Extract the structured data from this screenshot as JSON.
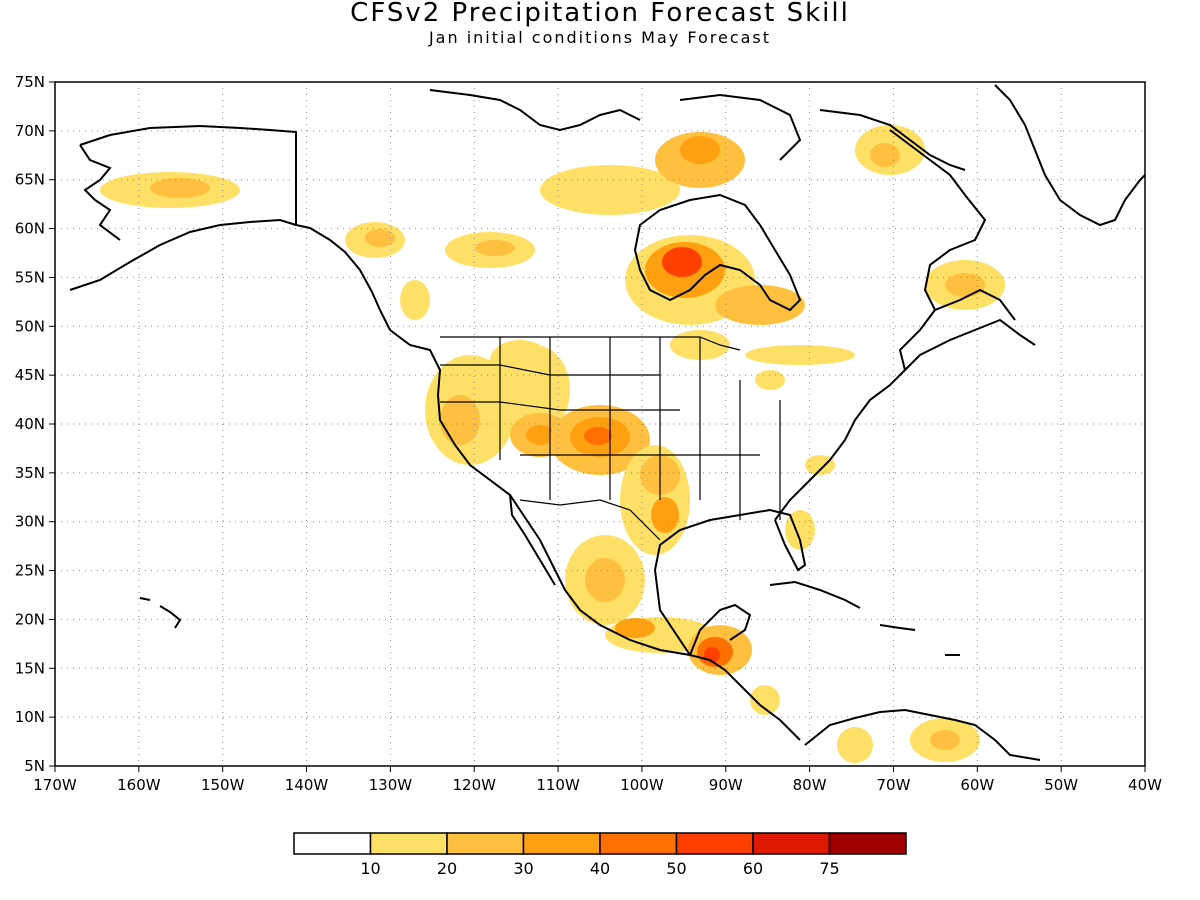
{
  "header": {
    "title": "CFSv2 Precipitation Forecast Skill",
    "subtitle": "Jan initial conditions   May Forecast"
  },
  "map": {
    "lon_range": [
      -170,
      -40
    ],
    "lat_range": [
      5,
      75
    ],
    "lon_ticks": [
      "170W",
      "160W",
      "150W",
      "140W",
      "130W",
      "120W",
      "110W",
      "100W",
      "90W",
      "80W",
      "70W",
      "60W",
      "50W",
      "40W"
    ],
    "lat_ticks": [
      "5N",
      "10N",
      "15N",
      "20N",
      "25N",
      "30N",
      "35N",
      "40N",
      "45N",
      "50N",
      "55N",
      "60N",
      "65N",
      "70N",
      "75N"
    ],
    "grid": "dotted",
    "coastline_color": "#000000"
  },
  "legend": {
    "bins": [
      {
        "color": "#ffffff"
      },
      {
        "color": "#ffe066"
      },
      {
        "color": "#ffc040"
      },
      {
        "color": "#ffa010"
      },
      {
        "color": "#ff7000"
      },
      {
        "color": "#ff4000"
      },
      {
        "color": "#e01800"
      },
      {
        "color": "#a00000"
      }
    ],
    "labels": [
      "10",
      "20",
      "30",
      "40",
      "50",
      "60",
      "75"
    ]
  }
}
